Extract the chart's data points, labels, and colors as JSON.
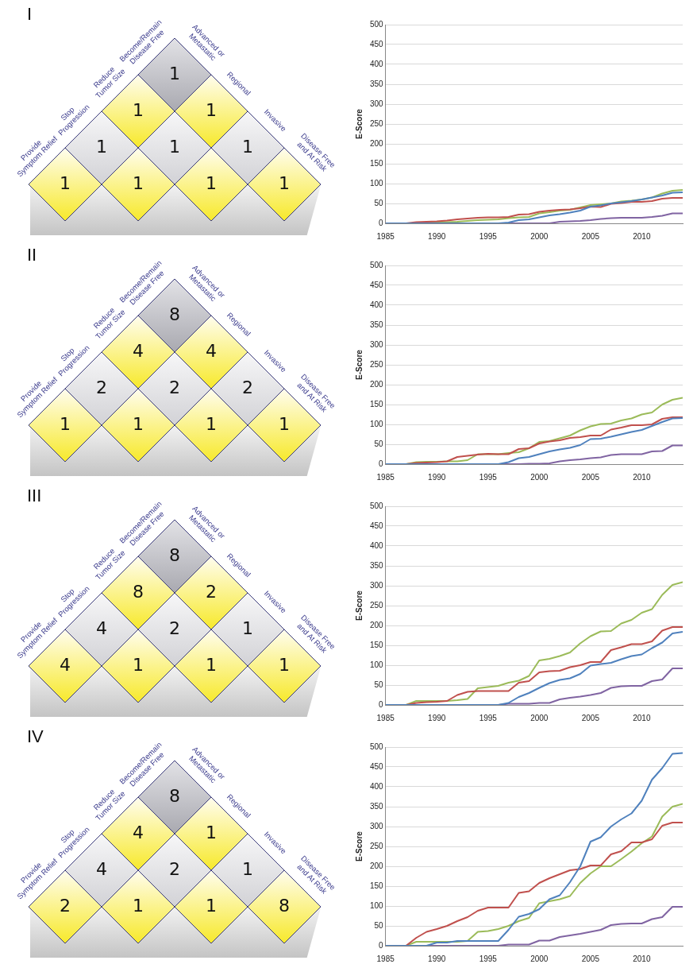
{
  "chart_data": [
    {
      "type": "other",
      "title": "I",
      "categories": [
        "Advanced or Metastatic",
        "Regional",
        "Invasive",
        "Disease Free and At Risk"
      ],
      "y_categories": [
        "Provide Symptom Relief",
        "Stop Progression",
        "Reduce Tumor Size",
        "Become/Remain Disease Free"
      ],
      "cell_labels": [
        [
          "1",
          null,
          null,
          null
        ],
        [
          "1",
          "1",
          null,
          null
        ],
        [
          "1",
          "1",
          "1",
          null
        ],
        [
          "1",
          "1",
          "1",
          "1"
        ]
      ]
    },
    {
      "type": "line",
      "ylabel": "E-Score",
      "x": [
        1985,
        1986,
        1987,
        1988,
        1989,
        1990,
        1991,
        1992,
        1993,
        1994,
        1995,
        1996,
        1997,
        1998,
        1999,
        2000,
        2001,
        2002,
        2003,
        2004,
        2005,
        2006,
        2007,
        2008,
        2009,
        2010,
        2011,
        2012,
        2013,
        2014
      ],
      "xlim": [
        1985,
        2014
      ],
      "xticks": [
        1985,
        1990,
        1995,
        2000,
        2005,
        2010
      ],
      "ylim": [
        0,
        500
      ],
      "yticks": [
        0,
        50,
        100,
        150,
        200,
        250,
        300,
        350,
        400,
        450,
        500
      ],
      "grid": "y",
      "legend": false,
      "marker": "none",
      "line_style": "solid",
      "series": [
        {
          "color": "#4f81bd",
          "values": [
            0,
            0,
            0,
            0,
            0,
            0,
            0,
            0,
            0,
            0,
            0,
            0,
            2,
            8,
            10,
            15,
            20,
            23,
            27,
            32,
            42,
            45,
            50,
            53,
            56,
            60,
            65,
            70,
            77,
            78
          ]
        },
        {
          "color": "#c0504d",
          "values": [
            0,
            0,
            0,
            3,
            4,
            5,
            7,
            10,
            12,
            14,
            15,
            15,
            16,
            22,
            23,
            29,
            32,
            34,
            35,
            38,
            42,
            41,
            49,
            51,
            54,
            54,
            56,
            62,
            64,
            64
          ]
        },
        {
          "color": "#9bbb59",
          "values": [
            null,
            null,
            null,
            null,
            2,
            3,
            3,
            4,
            6,
            8,
            9,
            10,
            13,
            15,
            16,
            25,
            28,
            32,
            34,
            40,
            46,
            48,
            50,
            55,
            57,
            60,
            65,
            75,
            82,
            84
          ]
        },
        {
          "color": "#8064a2",
          "values": [
            0,
            0,
            0,
            0,
            0,
            0,
            0,
            0,
            0,
            0,
            0,
            0,
            0,
            0,
            0,
            0,
            0,
            4,
            5,
            6,
            8,
            11,
            13,
            14,
            14,
            14,
            16,
            19,
            25,
            25
          ]
        }
      ]
    },
    {
      "type": "other",
      "title": "II",
      "categories": [
        "Advanced or Metastatic",
        "Regional",
        "Invasive",
        "Disease Free and At Risk"
      ],
      "y_categories": [
        "Provide Symptom Relief",
        "Stop Progression",
        "Reduce Tumor Size",
        "Become/Remain Disease Free"
      ],
      "cell_labels": [
        [
          "1",
          null,
          null,
          null
        ],
        [
          "2",
          "1",
          null,
          null
        ],
        [
          "4",
          "2",
          "1",
          null
        ],
        [
          "8",
          "4",
          "2",
          "1"
        ]
      ]
    },
    {
      "type": "line",
      "ylabel": "E-Score",
      "x": [
        1985,
        1986,
        1987,
        1988,
        1989,
        1990,
        1991,
        1992,
        1993,
        1994,
        1995,
        1996,
        1997,
        1998,
        1999,
        2000,
        2001,
        2002,
        2003,
        2004,
        2005,
        2006,
        2007,
        2008,
        2009,
        2010,
        2011,
        2012,
        2013,
        2014
      ],
      "xlim": [
        1985,
        2014
      ],
      "xticks": [
        1985,
        1990,
        1995,
        2000,
        2005,
        2010
      ],
      "ylim": [
        0,
        500
      ],
      "yticks": [
        0,
        50,
        100,
        150,
        200,
        250,
        300,
        350,
        400,
        450,
        500
      ],
      "grid": "y",
      "legend": false,
      "marker": "none",
      "line_style": "solid",
      "series": [
        {
          "color": "#4f81bd",
          "values": [
            0,
            0,
            0,
            0,
            0,
            0,
            0,
            0,
            0,
            0,
            0,
            0,
            5,
            15,
            18,
            25,
            32,
            37,
            41,
            48,
            63,
            64,
            69,
            75,
            81,
            86,
            96,
            106,
            115,
            116
          ]
        },
        {
          "color": "#c0504d",
          "values": [
            0,
            0,
            0,
            3,
            4,
            5,
            7,
            18,
            21,
            24,
            26,
            25,
            25,
            38,
            40,
            52,
            57,
            60,
            66,
            68,
            72,
            72,
            87,
            92,
            98,
            98,
            100,
            114,
            118,
            118
          ]
        },
        {
          "color": "#9bbb59",
          "values": [
            0,
            0,
            0,
            5,
            6,
            6,
            7,
            7,
            10,
            25,
            25,
            25,
            28,
            30,
            40,
            56,
            58,
            65,
            72,
            85,
            95,
            101,
            102,
            110,
            115,
            125,
            130,
            150,
            162,
            167
          ]
        },
        {
          "color": "#8064a2",
          "values": [
            0,
            0,
            0,
            0,
            0,
            0,
            0,
            0,
            0,
            0,
            0,
            0,
            0,
            0,
            1,
            1,
            2,
            7,
            10,
            12,
            15,
            17,
            23,
            25,
            25,
            25,
            32,
            33,
            47,
            47
          ]
        }
      ]
    },
    {
      "type": "other",
      "title": "III",
      "categories": [
        "Advanced or Metastatic",
        "Regional",
        "Invasive",
        "Disease Free and At Risk"
      ],
      "y_categories": [
        "Provide Symptom Relief",
        "Stop Progression",
        "Reduce Tumor Size",
        "Become/Remain Disease Free"
      ],
      "cell_labels": [
        [
          "4",
          null,
          null,
          null
        ],
        [
          "4",
          "1",
          null,
          null
        ],
        [
          "8",
          "2",
          "1",
          null
        ],
        [
          "8",
          "2",
          "1",
          "1"
        ]
      ]
    },
    {
      "type": "line",
      "ylabel": "E-Score",
      "x": [
        1985,
        1986,
        1987,
        1988,
        1989,
        1990,
        1991,
        1992,
        1993,
        1994,
        1995,
        1996,
        1997,
        1998,
        1999,
        2000,
        2001,
        2002,
        2003,
        2004,
        2005,
        2006,
        2007,
        2008,
        2009,
        2010,
        2011,
        2012,
        2013,
        2014
      ],
      "xlim": [
        1985,
        2014
      ],
      "xticks": [
        1985,
        1990,
        1995,
        2000,
        2005,
        2010
      ],
      "ylim": [
        0,
        500
      ],
      "yticks": [
        0,
        50,
        100,
        150,
        200,
        250,
        300,
        350,
        400,
        450,
        500
      ],
      "grid": "y",
      "legend": false,
      "marker": "none",
      "line_style": "solid",
      "series": [
        {
          "color": "#4f81bd",
          "values": [
            0,
            0,
            0,
            0,
            0,
            0,
            0,
            0,
            0,
            0,
            0,
            0,
            5,
            20,
            30,
            43,
            55,
            63,
            67,
            78,
            99,
            103,
            106,
            115,
            123,
            127,
            143,
            157,
            180,
            184
          ]
        },
        {
          "color": "#c0504d",
          "values": [
            0,
            0,
            0,
            5,
            7,
            8,
            10,
            25,
            33,
            35,
            35,
            35,
            35,
            56,
            60,
            82,
            85,
            86,
            95,
            100,
            108,
            108,
            138,
            145,
            153,
            153,
            160,
            187,
            196,
            196
          ]
        },
        {
          "color": "#9bbb59",
          "values": [
            0,
            0,
            0,
            10,
            10,
            10,
            10,
            12,
            15,
            42,
            45,
            48,
            56,
            61,
            73,
            112,
            116,
            123,
            132,
            155,
            173,
            185,
            186,
            205,
            214,
            232,
            241,
            277,
            302,
            309
          ]
        },
        {
          "color": "#8064a2",
          "values": [
            0,
            0,
            0,
            0,
            0,
            0,
            0,
            0,
            0,
            0,
            0,
            0,
            3,
            3,
            3,
            5,
            5,
            14,
            18,
            21,
            25,
            30,
            43,
            47,
            48,
            48,
            60,
            64,
            92,
            92
          ]
        }
      ]
    },
    {
      "type": "other",
      "title": "IV",
      "categories": [
        "Advanced or Metastatic",
        "Regional",
        "Invasive",
        "Disease Free and At Risk"
      ],
      "y_categories": [
        "Provide Symptom Relief",
        "Stop Progression",
        "Reduce Tumor Size",
        "Become/Remain Disease Free"
      ],
      "cell_labels": [
        [
          "2",
          null,
          null,
          null
        ],
        [
          "4",
          "1",
          null,
          null
        ],
        [
          "4",
          "2",
          "1",
          null
        ],
        [
          "8",
          "1",
          "1",
          "8"
        ]
      ]
    },
    {
      "type": "line",
      "ylabel": "E-Score",
      "x": [
        1985,
        1986,
        1987,
        1988,
        1989,
        1990,
        1991,
        1992,
        1993,
        1994,
        1995,
        1996,
        1997,
        1998,
        1999,
        2000,
        2001,
        2002,
        2003,
        2004,
        2005,
        2006,
        2007,
        2008,
        2009,
        2010,
        2011,
        2012,
        2013,
        2014
      ],
      "xlim": [
        1985,
        2014
      ],
      "xticks": [
        1985,
        1990,
        1995,
        2000,
        2005,
        2010
      ],
      "ylim": [
        0,
        500
      ],
      "yticks": [
        0,
        50,
        100,
        150,
        200,
        250,
        300,
        350,
        400,
        450,
        500
      ],
      "grid": "y",
      "legend": false,
      "marker": "none",
      "line_style": "solid",
      "series": [
        {
          "color": "#4f81bd",
          "values": [
            0,
            0,
            0,
            0,
            0,
            8,
            8,
            12,
            12,
            12,
            12,
            12,
            40,
            73,
            80,
            92,
            117,
            127,
            160,
            200,
            262,
            273,
            300,
            318,
            333,
            365,
            418,
            447,
            483,
            485
          ]
        },
        {
          "color": "#c0504d",
          "values": [
            0,
            0,
            0,
            20,
            35,
            42,
            50,
            62,
            72,
            88,
            96,
            96,
            96,
            133,
            137,
            158,
            170,
            180,
            190,
            193,
            202,
            202,
            230,
            238,
            260,
            260,
            268,
            302,
            310,
            310
          ]
        },
        {
          "color": "#9bbb59",
          "values": [
            0,
            0,
            0,
            10,
            10,
            10,
            10,
            10,
            12,
            35,
            37,
            42,
            50,
            62,
            70,
            107,
            112,
            117,
            125,
            158,
            182,
            200,
            200,
            218,
            237,
            258,
            275,
            325,
            350,
            357
          ]
        },
        {
          "color": "#8064a2",
          "values": [
            0,
            0,
            0,
            0,
            0,
            0,
            0,
            0,
            0,
            0,
            0,
            0,
            3,
            3,
            3,
            13,
            13,
            22,
            26,
            30,
            35,
            40,
            52,
            55,
            56,
            56,
            67,
            72,
            98,
            98
          ]
        }
      ]
    }
  ]
}
